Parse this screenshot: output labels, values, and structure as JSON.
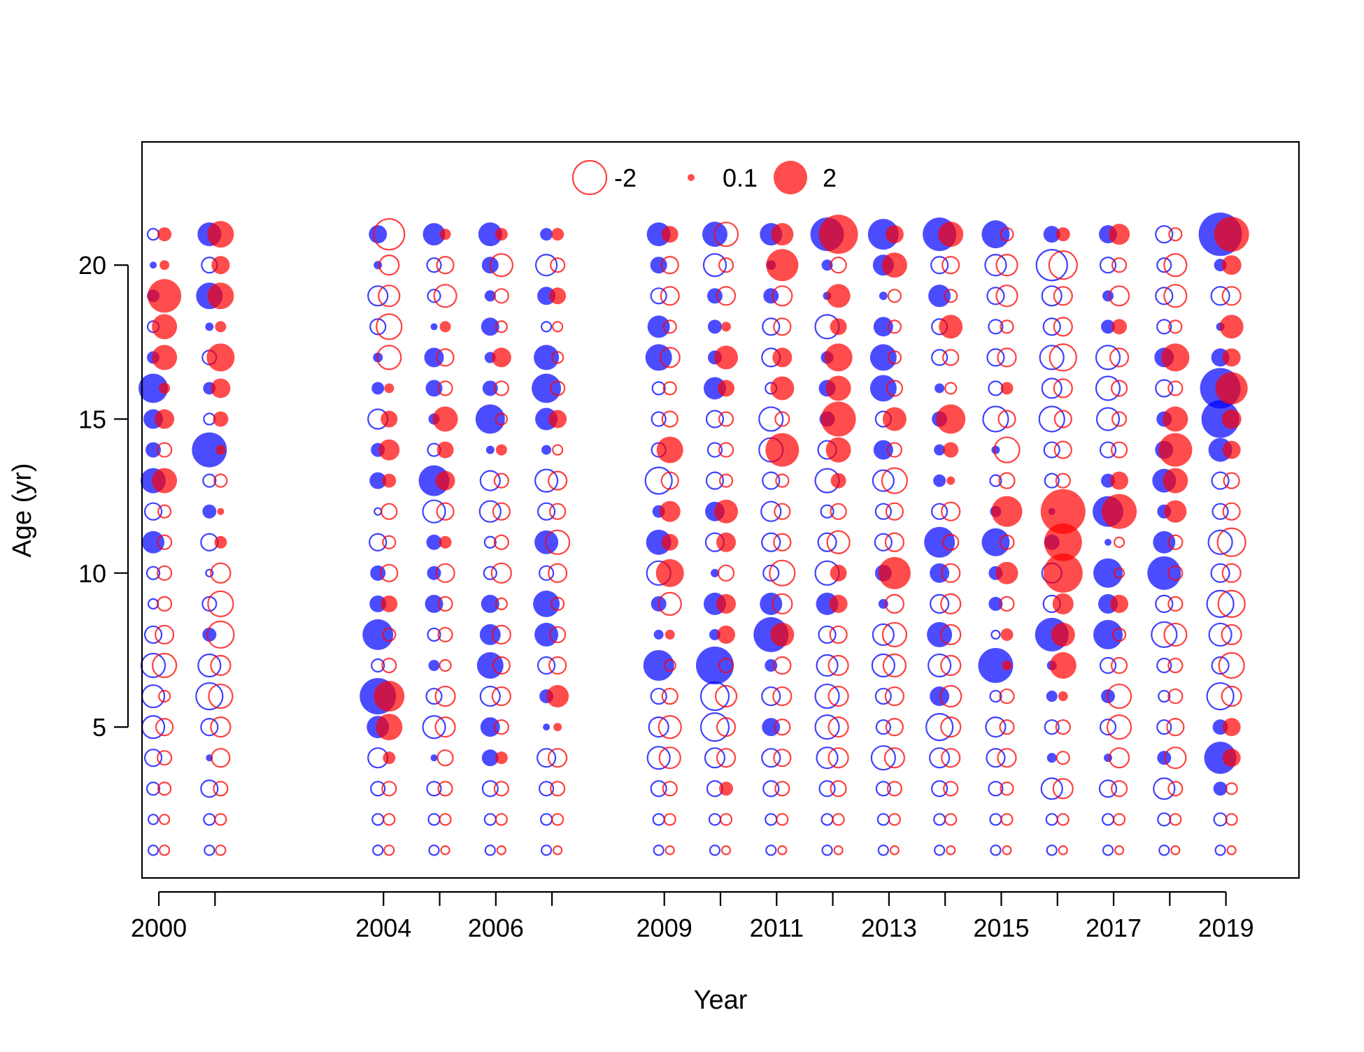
{
  "chart_data": {
    "type": "scatter",
    "subtype": "bubble",
    "title": "",
    "xlabel": "Year",
    "ylabel": "Age (yr)",
    "xlim": [
      1999.7,
      2020.3
    ],
    "ylim": [
      0.1,
      24.0
    ],
    "xticks": [
      2000,
      2001,
      2004,
      2005,
      2006,
      2007,
      2009,
      2010,
      2011,
      2012,
      2013,
      2014,
      2015,
      2016,
      2017,
      2018,
      2019
    ],
    "xtick_labels": [
      "2000",
      "",
      "2004",
      "",
      "2006",
      "",
      "2009",
      "",
      "2011",
      "",
      "2013",
      "",
      "2015",
      "",
      "2017",
      "",
      "2019"
    ],
    "yticks": [
      5,
      10,
      15,
      20
    ],
    "ytick_labels": [
      "5",
      "10",
      "15",
      "20"
    ],
    "legend": {
      "placement": "top-center",
      "entries": [
        {
          "label": "-2",
          "value": -2
        },
        {
          "label": "0.1",
          "value": 0.1
        },
        {
          "label": "2",
          "value": 2
        }
      ]
    },
    "colors": {
      "series_a": "#0000ff",
      "series_b": "#ff0000",
      "frame": "#000000"
    },
    "ages": [
      1,
      2,
      3,
      4,
      5,
      6,
      7,
      8,
      9,
      10,
      11,
      12,
      13,
      14,
      15,
      16,
      17,
      18,
      19,
      20,
      21
    ],
    "series": [
      {
        "color": "#0000ff",
        "x_offset": -0.1,
        "points": [
          {
            "x": 2000,
            "values": [
              -0.3,
              -0.3,
              -0.5,
              -0.8,
              -1.2,
              -1.2,
              -1.3,
              -0.8,
              -0.3,
              -0.5,
              1.2,
              -0.8,
              1.4,
              0.7,
              1.0,
              1.7,
              0.5,
              -0.4,
              0.5,
              0.1,
              -0.4
            ]
          },
          {
            "x": 2001,
            "values": [
              -0.3,
              -0.4,
              -0.8,
              0.1,
              -0.8,
              -1.5,
              -1.2,
              0.6,
              -0.6,
              -0.1,
              -0.8,
              0.6,
              -0.5,
              2.1,
              -0.4,
              0.5,
              -0.6,
              0.2,
              1.5,
              -0.7,
              1.3
            ]
          },
          {
            "x": 2004,
            "values": [
              -0.3,
              -0.4,
              -0.6,
              -1.0,
              1.2,
              2.2,
              -0.5,
              1.8,
              0.8,
              0.7,
              -0.8,
              -0.1,
              0.8,
              0.6,
              -1.0,
              0.5,
              0.3,
              -0.7,
              -1.0,
              0.2,
              0.9
            ]
          },
          {
            "x": 2005,
            "values": [
              -0.3,
              -0.4,
              -0.6,
              0.1,
              -1.2,
              -0.7,
              0.4,
              -0.5,
              0.9,
              0.6,
              0.7,
              -1.2,
              1.8,
              -0.5,
              0.4,
              0.8,
              1.0,
              0.1,
              -0.5,
              -0.6,
              1.2
            ]
          },
          {
            "x": 2006,
            "values": [
              -0.3,
              -0.4,
              -0.7,
              0.8,
              1.0,
              -1.0,
              1.5,
              1.1,
              0.9,
              -0.5,
              -0.4,
              -1.1,
              -1.0,
              0.2,
              1.7,
              0.7,
              0.4,
              0.9,
              0.4,
              0.8,
              1.3
            ]
          },
          {
            "x": 2007,
            "values": [
              -0.3,
              -0.4,
              -0.6,
              -0.9,
              0.1,
              0.6,
              -0.8,
              1.3,
              1.5,
              -0.6,
              1.3,
              -0.8,
              -1.2,
              0.3,
              1.2,
              1.7,
              1.4,
              -0.3,
              0.9,
              -1.1,
              0.5
            ]
          },
          {
            "x": 2009,
            "values": [
              -0.3,
              -0.4,
              -0.7,
              -1.2,
              -1.0,
              -0.7,
              1.8,
              0.3,
              0.7,
              -1.3,
              1.4,
              0.5,
              -1.5,
              -0.6,
              -0.6,
              -0.5,
              1.5,
              1.2,
              -0.7,
              0.8,
              1.3
            ]
          },
          {
            "x": 2010,
            "values": [
              -0.3,
              -0.4,
              -0.7,
              -1.0,
              -1.6,
              -1.6,
              2.3,
              0.4,
              1.2,
              0.2,
              -0.9,
              1.0,
              -0.8,
              -0.6,
              -0.8,
              1.2,
              0.6,
              0.6,
              0.7,
              -1.2,
              1.4
            ]
          },
          {
            "x": 2011,
            "values": [
              -0.3,
              -0.4,
              -0.7,
              -0.9,
              0.9,
              -0.9,
              0.5,
              2.1,
              1.2,
              -0.7,
              -0.9,
              -1.0,
              -0.8,
              -1.3,
              -1.3,
              -0.4,
              -0.9,
              -0.8,
              0.7,
              0.3,
              1.2
            ]
          },
          {
            "x": 2012,
            "values": [
              -0.3,
              -0.4,
              -0.7,
              -1.1,
              -1.3,
              -1.3,
              -1.1,
              -0.8,
              1.2,
              -1.3,
              -0.9,
              -0.5,
              -1.3,
              -0.9,
              0.7,
              0.8,
              0.5,
              -1.3,
              0.2,
              0.4,
              2.0
            ]
          },
          {
            "x": 2013,
            "values": [
              -0.3,
              -0.4,
              -0.6,
              -1.3,
              -0.6,
              -0.7,
              -1.2,
              -1.1,
              0.3,
              0.8,
              -0.8,
              -0.7,
              -1.1,
              1.0,
              -0.7,
              1.5,
              1.5,
              1.0,
              0.2,
              1.1,
              1.8
            ]
          },
          {
            "x": 2014,
            "values": [
              -0.3,
              -0.4,
              -0.7,
              -1.0,
              -1.5,
              1.0,
              -1.2,
              1.4,
              -0.9,
              1.0,
              1.8,
              -0.7,
              0.5,
              0.4,
              0.7,
              0.3,
              -0.7,
              -0.7,
              1.2,
              -0.8,
              2.0
            ]
          },
          {
            "x": 2015,
            "values": [
              -0.3,
              -0.4,
              -0.6,
              -0.9,
              -1.0,
              -0.4,
              2.1,
              -0.2,
              0.6,
              0.6,
              1.6,
              0.4,
              -0.4,
              0.2,
              -1.4,
              -0.6,
              -0.8,
              -0.6,
              -0.8,
              -1.1,
              1.6
            ]
          },
          {
            "x": 2016,
            "values": [
              -0.3,
              -0.4,
              -1.1,
              0.3,
              -0.6,
              0.4,
              0.3,
              2.0,
              -0.8,
              -1.0,
              0.7,
              0.1,
              -0.6,
              -0.7,
              -1.4,
              -1.0,
              -1.3,
              -0.8,
              -1.0,
              -1.8,
              0.8
            ]
          },
          {
            "x": 2017,
            "values": [
              -0.3,
              -0.4,
              -0.8,
              0.2,
              -0.7,
              0.6,
              -0.7,
              1.7,
              1.0,
              1.7,
              0.1,
              1.8,
              0.6,
              -0.7,
              -1.2,
              -1.3,
              -1.3,
              0.6,
              0.4,
              -0.7,
              0.9
            ]
          },
          {
            "x": 2018,
            "values": [
              -0.3,
              -0.5,
              -1.1,
              0.6,
              -0.6,
              -0.4,
              -0.6,
              -1.4,
              -0.8,
              2.0,
              1.2,
              0.6,
              1.3,
              0.9,
              0.7,
              -0.8,
              1.0,
              -0.6,
              -0.8,
              -0.6,
              -0.8
            ]
          },
          {
            "x": 2019,
            "values": [
              -0.3,
              -0.5,
              0.6,
              1.9,
              0.7,
              -1.5,
              -0.8,
              -1.2,
              -1.5,
              -0.9,
              -1.3,
              -0.7,
              -0.8,
              1.3,
              2.3,
              2.5,
              0.9,
              0.2,
              -0.9,
              0.5,
              2.7
            ]
          }
        ]
      },
      {
        "color": "#ff0000",
        "x_offset": 0.1,
        "points": [
          {
            "x": 2000,
            "values": [
              -0.3,
              -0.3,
              -0.5,
              -0.6,
              -0.8,
              -0.4,
              -1.3,
              -0.9,
              -0.6,
              -0.6,
              -0.6,
              -0.5,
              1.4,
              -0.6,
              1.0,
              0.4,
              1.4,
              1.4,
              2.0,
              0.3,
              0.6
            ]
          },
          {
            "x": 2001,
            "values": [
              -0.3,
              -0.4,
              -0.6,
              -0.9,
              -1.0,
              -1.3,
              -1.0,
              -1.5,
              -1.4,
              -1.0,
              0.5,
              0.1,
              -0.5,
              0.3,
              0.7,
              1.0,
              1.6,
              0.4,
              1.5,
              0.9,
              1.5
            ]
          },
          {
            "x": 2004,
            "values": [
              -0.3,
              -0.4,
              -0.6,
              0.5,
              1.5,
              1.8,
              -0.6,
              -0.5,
              0.8,
              -0.8,
              -0.5,
              -0.7,
              0.6,
              1.1,
              0.8,
              0.3,
              -1.3,
              -1.4,
              -1.1,
              -1.0,
              -1.8
            ]
          },
          {
            "x": 2005,
            "values": [
              -0.2,
              -0.4,
              -0.6,
              -0.7,
              -1.0,
              -1.0,
              -0.4,
              -0.6,
              -0.6,
              -0.9,
              0.5,
              -0.8,
              1.0,
              0.8,
              1.4,
              -0.6,
              -0.8,
              0.4,
              -1.2,
              -0.8,
              0.4
            ]
          },
          {
            "x": 2006,
            "values": [
              -0.2,
              -0.4,
              -0.6,
              0.5,
              -0.6,
              -0.9,
              -0.8,
              -0.9,
              -0.4,
              -1.0,
              -0.6,
              -0.8,
              -0.6,
              0.4,
              -0.4,
              -0.6,
              1.0,
              -0.4,
              -0.6,
              -1.2,
              0.5
            ]
          },
          {
            "x": 2007,
            "values": [
              -0.2,
              -0.4,
              -0.6,
              -0.9,
              0.2,
              1.2,
              -0.8,
              -0.7,
              -0.5,
              -0.9,
              -1.3,
              -0.7,
              -0.9,
              -0.3,
              0.9,
              -0.6,
              -0.4,
              -0.3,
              0.8,
              -0.6,
              0.5
            ]
          },
          {
            "x": 2009,
            "values": [
              -0.2,
              -0.4,
              -0.6,
              -1.1,
              -1.2,
              -0.7,
              -0.4,
              0.3,
              -1.2,
              1.6,
              0.8,
              1.1,
              -0.8,
              1.5,
              -0.7,
              -0.5,
              -1.0,
              -0.5,
              -0.9,
              -0.8,
              0.8
            ]
          },
          {
            "x": 2010,
            "values": [
              -0.2,
              -0.4,
              0.6,
              -0.9,
              -0.9,
              -1.1,
              -0.6,
              0.9,
              1.0,
              -0.7,
              1.0,
              1.3,
              -0.5,
              -0.6,
              -0.6,
              0.8,
              1.3,
              0.3,
              -0.9,
              -0.6,
              -1.3
            ]
          },
          {
            "x": 2011,
            "values": [
              -0.2,
              -0.4,
              -0.6,
              -0.8,
              -0.7,
              -0.9,
              -0.8,
              1.3,
              -1.0,
              -1.4,
              -0.8,
              -0.7,
              -0.5,
              2.0,
              -0.6,
              1.3,
              1.0,
              -0.8,
              -1.0,
              1.9,
              1.2
            ]
          },
          {
            "x": 2012,
            "values": [
              -0.2,
              -0.4,
              -0.7,
              -1.0,
              -1.0,
              -1.0,
              -1.0,
              -0.8,
              0.9,
              0.8,
              -1.2,
              -0.7,
              0.7,
              1.4,
              2.1,
              1.4,
              1.6,
              0.8,
              1.3,
              -0.7,
              2.4
            ]
          },
          {
            "x": 2013,
            "values": [
              -0.2,
              -0.4,
              -0.6,
              -1.0,
              -0.8,
              -0.9,
              -1.2,
              -1.3,
              -0.9,
              1.9,
              -0.9,
              -0.8,
              -1.4,
              -0.6,
              1.3,
              -0.7,
              -0.5,
              -0.5,
              -0.5,
              1.4,
              0.9
            ]
          },
          {
            "x": 2014,
            "values": [
              -0.2,
              -0.4,
              -0.6,
              -0.9,
              -1.0,
              -1.1,
              -1.0,
              -1.0,
              -1.0,
              -0.9,
              -0.7,
              -0.9,
              0.2,
              0.7,
              1.7,
              -0.4,
              -0.7,
              1.3,
              -0.5,
              -0.8,
              1.4
            ]
          },
          {
            "x": 2015,
            "values": [
              -0.2,
              -0.4,
              -0.5,
              -0.9,
              -0.6,
              -0.6,
              0.3,
              0.5,
              -0.6,
              1.2,
              -0.6,
              1.8,
              -0.7,
              -1.4,
              -0.8,
              0.5,
              -0.9,
              -0.5,
              -1.1,
              -1.1,
              -0.5
            ]
          },
          {
            "x": 2016,
            "values": [
              -0.2,
              -0.4,
              -1.0,
              -0.5,
              -0.6,
              0.3,
              1.5,
              1.3,
              1.1,
              2.4,
              2.3,
              2.8,
              -0.6,
              -0.8,
              -0.8,
              -0.9,
              -1.5,
              -0.9,
              -0.9,
              -1.6,
              0.6
            ]
          },
          {
            "x": 2017,
            "values": [
              -0.2,
              -0.4,
              -0.7,
              -1.0,
              -1.3,
              -1.3,
              -0.7,
              -0.5,
              0.9,
              -0.3,
              -0.3,
              2.1,
              0.9,
              -0.7,
              -0.6,
              -0.7,
              -0.9,
              0.7,
              -1.0,
              -0.6,
              1.1
            ]
          },
          {
            "x": 2018,
            "values": [
              -0.2,
              -0.4,
              -0.6,
              -1.1,
              -0.8,
              -0.6,
              -0.6,
              -1.2,
              -0.6,
              -0.6,
              -0.6,
              1.2,
              1.4,
              2.0,
              1.4,
              -0.6,
              1.6,
              -0.5,
              -1.2,
              -1.2,
              -0.5
            ]
          },
          {
            "x": 2019,
            "values": [
              -0.2,
              -0.4,
              -0.4,
              0.9,
              0.9,
              -1.0,
              -1.4,
              -1.0,
              -1.5,
              -0.9,
              -1.6,
              -0.8,
              -0.7,
              0.9,
              1.0,
              1.9,
              0.9,
              1.3,
              -0.9,
              1.0,
              2.1
            ]
          }
        ]
      }
    ]
  }
}
